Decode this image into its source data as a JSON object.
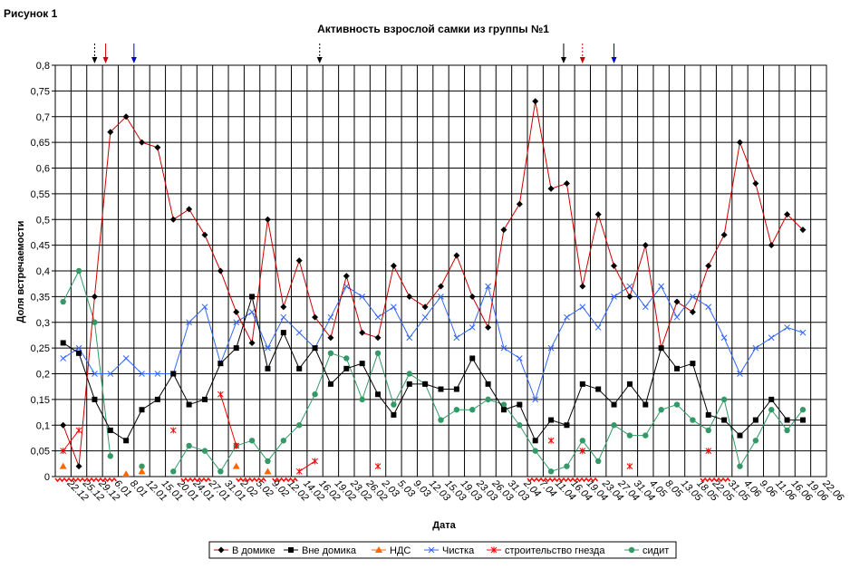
{
  "figure_label": "Рисунок 1",
  "chart_data": {
    "type": "line",
    "title": "Активность взрослой самки из группы №1",
    "xlabel": "Дата",
    "ylabel": "Доля встречаемости",
    "ylim": [
      0,
      0.8
    ],
    "y_ticks": [
      "0",
      "0,05",
      "0,1",
      "0,15",
      "0,2",
      "0,25",
      "0,3",
      "0,35",
      "0,4",
      "0,45",
      "0,5",
      "0,55",
      "0,6",
      "0,65",
      "0,7",
      "0,75",
      "0,8"
    ],
    "grid": true,
    "legend_position": "bottom",
    "categories": [
      "22.12",
      "25.12",
      "29.12",
      "6.01",
      "8.01",
      "12.01",
      "15.01",
      "20.01",
      "24.01",
      "27.01",
      "31.01",
      "2.02",
      "5.02",
      "9.02",
      "12.02",
      "14.02",
      "16.02",
      "19.02",
      "23.02",
      "26.02",
      "2.03",
      "5.03",
      "9.03",
      "12.03",
      "15.03",
      "19.03",
      "23.03",
      "26.03",
      "31.03",
      "2.04",
      "7.04",
      "11.04",
      "16.04",
      "19.04",
      "23.04",
      "27.04",
      "31.04",
      "4.05",
      "8.05",
      "13.05",
      "18.05",
      "22.05",
      "31.05",
      "4.06",
      "9.06",
      "11.06",
      "16.06",
      "19.06",
      "22.06"
    ],
    "x_tick_labels": [
      "22.12",
      "25.12",
      "29.12",
      "6.01",
      "8.01",
      "12.01",
      "15.01",
      "20.01",
      "24.01",
      "27.01",
      "31.01",
      "2.02",
      "5.02",
      "9.02",
      "12.02",
      "14.02",
      "16.02",
      "19.02",
      "23.02",
      "26.02",
      "2.03",
      "5.03",
      "9.03",
      "12.03",
      "15.03",
      "19.03",
      "23.03",
      "26.03",
      "31.03",
      "2.04",
      "7.04",
      "11.04",
      "16.04",
      "19.04",
      "23.04",
      "27.04",
      "31.04",
      "4.05",
      "8.05",
      "13.05",
      "18.05",
      "22.05",
      "31.05",
      "4.06",
      "9.06",
      "11.06",
      "16.06",
      "19.06",
      "22.06"
    ],
    "series": [
      {
        "name": "В домике",
        "color": "#cc0000",
        "marker": "diamond",
        "marker_color": "#000000",
        "values": [
          0.1,
          0.02,
          0.35,
          0.67,
          0.7,
          0.65,
          0.64,
          0.5,
          0.52,
          0.47,
          0.4,
          0.32,
          0.26,
          0.5,
          0.33,
          0.42,
          0.31,
          0.27,
          0.39,
          0.28,
          0.27,
          0.41,
          0.35,
          0.33,
          0.37,
          0.43,
          0.35,
          0.29,
          0.48,
          0.53,
          0.73,
          0.56,
          0.57,
          0.37,
          0.51,
          0.41,
          0.35,
          0.45,
          0.25,
          0.34,
          0.32,
          0.41,
          0.47,
          0.65,
          0.57,
          0.45,
          0.51,
          0.48,
          null
        ]
      },
      {
        "name": "Вне домика",
        "color": "#000000",
        "marker": "square",
        "marker_color": "#000000",
        "values": [
          0.26,
          0.24,
          0.15,
          0.09,
          0.07,
          0.13,
          0.15,
          0.2,
          0.14,
          0.15,
          0.22,
          0.25,
          0.35,
          0.21,
          0.28,
          0.21,
          0.25,
          0.18,
          0.21,
          0.22,
          0.16,
          0.12,
          0.18,
          0.18,
          0.17,
          0.17,
          0.23,
          0.18,
          0.13,
          0.14,
          0.07,
          0.11,
          0.1,
          0.18,
          0.17,
          0.14,
          0.18,
          0.14,
          0.25,
          0.21,
          0.22,
          0.12,
          0.11,
          0.08,
          0.11,
          0.15,
          0.11,
          0.11,
          null
        ]
      },
      {
        "name": "НДС",
        "color": "#ff6600",
        "marker": "triangle",
        "marker_color": "#ff6600",
        "line": false,
        "values": [
          0.02,
          null,
          null,
          null,
          0.005,
          0.01,
          null,
          null,
          null,
          null,
          null,
          0.02,
          null,
          0.01,
          null,
          null,
          null,
          null,
          null,
          null,
          null,
          null,
          null,
          null,
          null,
          null,
          null,
          null,
          null,
          null,
          null,
          null,
          null,
          null,
          null,
          null,
          null,
          null,
          null,
          null,
          null,
          null,
          null,
          null,
          null,
          null,
          null,
          null,
          null
        ]
      },
      {
        "name": "Чистка",
        "color": "#3366ff",
        "marker": "x",
        "marker_color": "#3366ff",
        "values": [
          0.23,
          0.25,
          0.2,
          0.2,
          0.23,
          0.2,
          0.2,
          0.2,
          0.3,
          0.33,
          0.22,
          0.3,
          0.32,
          0.25,
          0.31,
          0.28,
          0.25,
          0.31,
          0.37,
          0.35,
          0.31,
          0.33,
          0.27,
          0.31,
          0.35,
          0.27,
          0.29,
          0.37,
          0.25,
          0.23,
          0.15,
          0.25,
          0.31,
          0.33,
          0.29,
          0.35,
          0.37,
          0.33,
          0.37,
          0.31,
          0.35,
          0.33,
          0.27,
          0.2,
          0.25,
          0.27,
          0.29,
          0.28,
          null
        ]
      },
      {
        "name": "строительство гнезда",
        "color": "#ff0000",
        "marker": "star",
        "marker_color": "#ff0000",
        "values": [
          0.05,
          0.09,
          null,
          null,
          null,
          null,
          null,
          0.09,
          null,
          null,
          0.16,
          0.06,
          null,
          null,
          null,
          0.01,
          0.03,
          null,
          null,
          null,
          0.02,
          null,
          null,
          null,
          null,
          null,
          null,
          null,
          null,
          null,
          null,
          0.07,
          null,
          0.05,
          null,
          null,
          0.02,
          null,
          null,
          null,
          null,
          0.05,
          null,
          null,
          null,
          null,
          null,
          null,
          null
        ]
      },
      {
        "name": "сидит",
        "color": "#339966",
        "marker": "circle",
        "marker_color": "#339966",
        "values": [
          0.34,
          0.4,
          0.3,
          0.04,
          null,
          0.02,
          null,
          0.01,
          0.06,
          0.05,
          0.01,
          0.06,
          0.07,
          0.03,
          0.07,
          0.1,
          0.16,
          0.24,
          0.23,
          0.15,
          0.24,
          0.14,
          0.2,
          0.18,
          0.11,
          0.13,
          0.13,
          0.15,
          0.14,
          0.1,
          0.05,
          0.01,
          0.02,
          0.07,
          0.03,
          0.1,
          0.08,
          0.08,
          0.13,
          0.14,
          0.11,
          0.09,
          0.15,
          0.02,
          0.07,
          0.13,
          0.09,
          0.13,
          null
        ]
      }
    ],
    "event_arrows": [
      {
        "index": 2.0,
        "color": "#000000",
        "style": "dashed"
      },
      {
        "index": 2.7,
        "color": "#cc0000",
        "style": "solid"
      },
      {
        "index": 4.5,
        "color": "#0000cc",
        "style": "solid"
      },
      {
        "index": 16.3,
        "color": "#000000",
        "style": "dashed"
      },
      {
        "index": 31.8,
        "color": "#000000",
        "style": "solid"
      },
      {
        "index": 33.0,
        "color": "#cc0000",
        "style": "dashed"
      },
      {
        "index": 35.0,
        "color": "#0000cc",
        "style": "solid"
      }
    ],
    "baseline_marks": [
      {
        "from": 0,
        "to": 3
      },
      {
        "from": 8,
        "to": 9
      },
      {
        "from": 11.5,
        "to": 12.5
      },
      {
        "from": 13.8,
        "to": 14.5
      },
      {
        "from": 30,
        "to": 33.5
      },
      {
        "from": 41,
        "to": 42
      }
    ]
  }
}
